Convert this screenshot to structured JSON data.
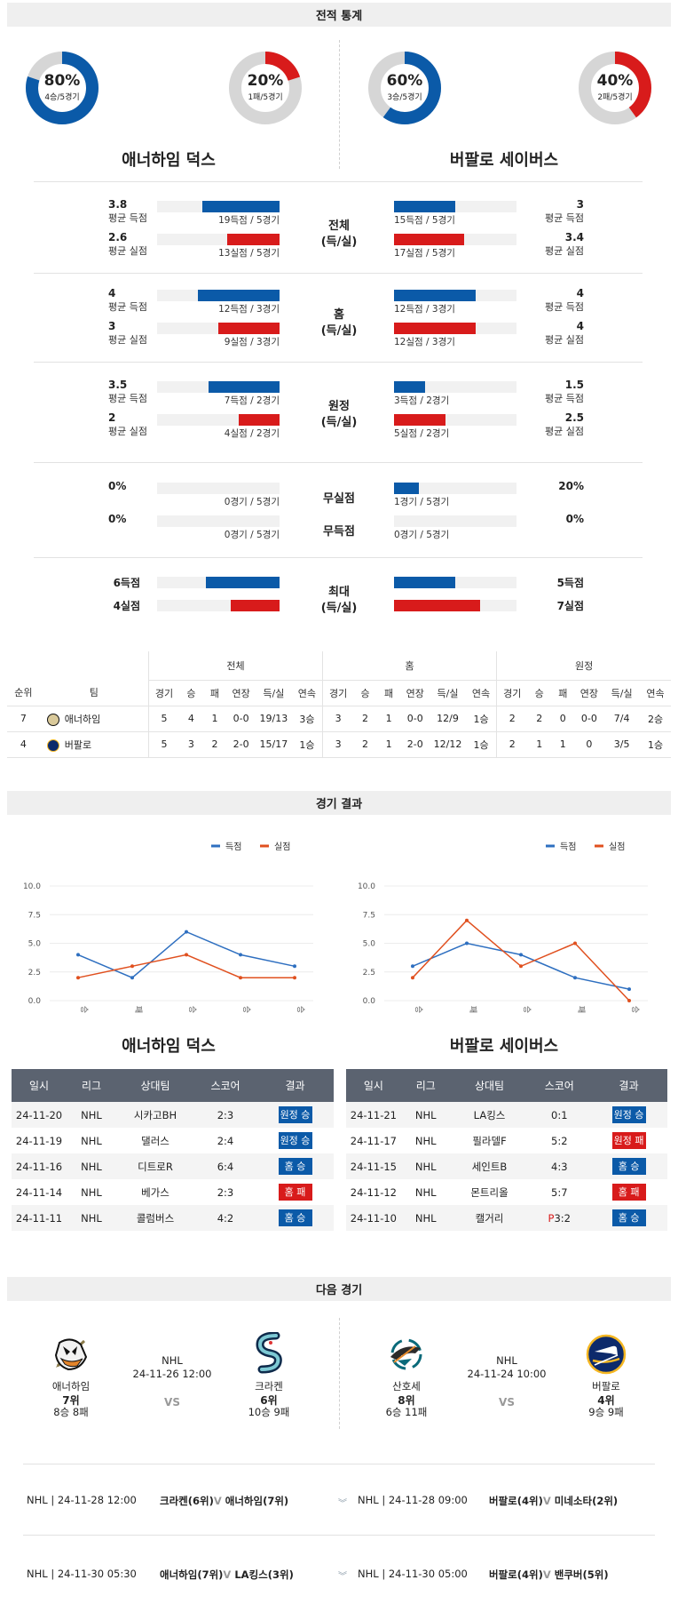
{
  "sections": {
    "stats": "전적 통계",
    "results": "경기 결과",
    "next": "다음 경기"
  },
  "teams": {
    "home": "애너하임 덕스",
    "away": "버팔로 세이버스"
  },
  "donuts": [
    {
      "pct": "80%",
      "sub": "4승/5경기",
      "value": 0.8,
      "color": "#0b5aa8"
    },
    {
      "pct": "20%",
      "sub": "1패/5경기",
      "value": 0.2,
      "color": "#d81b1b"
    },
    {
      "pct": "60%",
      "sub": "3승/5경기",
      "value": 0.6,
      "color": "#0b5aa8"
    },
    {
      "pct": "40%",
      "sub": "2패/5경기",
      "value": 0.4,
      "color": "#d81b1b"
    }
  ],
  "stat_groups": [
    {
      "mid": [
        "전체",
        "(득/실)"
      ],
      "left": [
        {
          "v": "3.8",
          "l": "평균 득점",
          "cap": "19득점 / 5경기",
          "f": 0.63
        },
        {
          "v": "2.6",
          "l": "평균 실점",
          "cap": "13실점 / 5경기",
          "f": 0.43
        }
      ],
      "right": [
        {
          "v": "3",
          "l": "평균 득점",
          "cap": "15득점 / 5경기",
          "f": 0.5
        },
        {
          "v": "3.4",
          "l": "평균 실점",
          "cap": "17실점 / 5경기",
          "f": 0.57
        }
      ]
    },
    {
      "mid": [
        "홈",
        "(득/실)"
      ],
      "left": [
        {
          "v": "4",
          "l": "평균 득점",
          "cap": "12득점 / 3경기",
          "f": 0.67
        },
        {
          "v": "3",
          "l": "평균 실점",
          "cap": "9실점 / 3경기",
          "f": 0.5
        }
      ],
      "right": [
        {
          "v": "4",
          "l": "평균 득점",
          "cap": "12득점 / 3경기",
          "f": 0.67
        },
        {
          "v": "4",
          "l": "평균 실점",
          "cap": "12실점 / 3경기",
          "f": 0.67
        }
      ]
    },
    {
      "mid": [
        "원정",
        "(득/실)"
      ],
      "left": [
        {
          "v": "3.5",
          "l": "평균 득점",
          "cap": "7득점 / 2경기",
          "f": 0.58
        },
        {
          "v": "2",
          "l": "평균 실점",
          "cap": "4실점 / 2경기",
          "f": 0.33
        }
      ],
      "right": [
        {
          "v": "1.5",
          "l": "평균 득점",
          "cap": "3득점 / 2경기",
          "f": 0.25
        },
        {
          "v": "2.5",
          "l": "평균 실점",
          "cap": "5실점 / 2경기",
          "f": 0.42
        }
      ]
    }
  ],
  "zero_stats": [
    {
      "mid": "무실점",
      "left": {
        "v": "0%",
        "cap": "0경기 / 5경기",
        "f": 0
      },
      "right": {
        "v": "20%",
        "cap": "1경기 / 5경기",
        "f": 0.2
      }
    },
    {
      "mid": "무득점",
      "left": {
        "v": "0%",
        "cap": "0경기 / 5경기",
        "f": 0
      },
      "right": {
        "v": "0%",
        "cap": "0경기 / 5경기",
        "f": 0
      }
    }
  ],
  "max_stats": {
    "mid": [
      "최대",
      "(득/실)"
    ],
    "left": [
      {
        "v": "6득점",
        "f": 0.6
      },
      {
        "v": "4실점",
        "f": 0.4
      }
    ],
    "right": [
      {
        "v": "5득점",
        "f": 0.5
      },
      {
        "v": "7실점",
        "f": 0.7
      }
    ]
  },
  "standings": {
    "groups": [
      "전체",
      "홈",
      "원정"
    ],
    "cols": [
      "순위",
      "팀",
      "경기",
      "승",
      "패",
      "연장",
      "득/실",
      "연속",
      "경기",
      "승",
      "패",
      "연장",
      "득/실",
      "연속",
      "경기",
      "승",
      "패",
      "연장",
      "득/실",
      "연속"
    ],
    "rows": [
      {
        "rank": "7",
        "team": "애너하임",
        "logo": "ducks-logo",
        "cells": [
          "5",
          "4",
          "1",
          "0-0",
          "19/13",
          "3승",
          "3",
          "2",
          "1",
          "0-0",
          "12/9",
          "1승",
          "2",
          "2",
          "0",
          "0-0",
          "7/4",
          "2승"
        ]
      },
      {
        "rank": "4",
        "team": "버팔로",
        "logo": "sabres-logo",
        "cells": [
          "5",
          "3",
          "2",
          "2-0",
          "15/17",
          "1승",
          "3",
          "2",
          "1",
          "2-0",
          "12/12",
          "1승",
          "2",
          "1",
          "1",
          "0",
          "3/5",
          "1승"
        ]
      }
    ]
  },
  "legend": {
    "scored": "득점",
    "conceded": "실점"
  },
  "chart_data": [
    {
      "type": "line",
      "x": [
        "승",
        "패",
        "승",
        "승",
        "승"
      ],
      "yticks": [
        "10.0",
        "7.5",
        "5.0",
        "2.5",
        "0.0"
      ],
      "ylim": [
        0,
        10
      ],
      "legend_position": "top-right",
      "series": [
        {
          "name": "득점",
          "values": [
            4,
            2,
            6,
            4,
            3
          ],
          "color": "#2e6fc0"
        },
        {
          "name": "실점",
          "values": [
            2,
            3,
            4,
            2,
            2
          ],
          "color": "#e0501f"
        }
      ]
    },
    {
      "type": "line",
      "x": [
        "승",
        "패",
        "승",
        "패",
        "승"
      ],
      "yticks": [
        "10.0",
        "7.5",
        "5.0",
        "2.5",
        "0.0"
      ],
      "ylim": [
        0,
        10
      ],
      "legend_position": "top-right",
      "series": [
        {
          "name": "득점",
          "values": [
            3,
            5,
            4,
            2,
            1
          ],
          "color": "#2e6fc0"
        },
        {
          "name": "실점",
          "values": [
            2,
            7,
            3,
            5,
            0
          ],
          "color": "#e0501f"
        }
      ]
    }
  ],
  "results": {
    "headers": [
      "일시",
      "리그",
      "상대팀",
      "스코어",
      "결과"
    ],
    "left": [
      {
        "date": "24-11-20",
        "league": "NHL",
        "opp": "시카고BH",
        "score": "2:3",
        "result": "원정 승",
        "color": "blue"
      },
      {
        "date": "24-11-19",
        "league": "NHL",
        "opp": "댈러스",
        "score": "2:4",
        "result": "원정 승",
        "color": "blue"
      },
      {
        "date": "24-11-16",
        "league": "NHL",
        "opp": "디트로R",
        "score": "6:4",
        "result": "홈 승",
        "color": "blue"
      },
      {
        "date": "24-11-14",
        "league": "NHL",
        "opp": "베가스",
        "score": "2:3",
        "result": "홈 패",
        "color": "red"
      },
      {
        "date": "24-11-11",
        "league": "NHL",
        "opp": "콜럼버스",
        "score": "4:2",
        "result": "홈 승",
        "color": "blue"
      }
    ],
    "right": [
      {
        "date": "24-11-21",
        "league": "NHL",
        "opp": "LA킹스",
        "score": "0:1",
        "result": "원정 승",
        "color": "blue"
      },
      {
        "date": "24-11-17",
        "league": "NHL",
        "opp": "필라델F",
        "score": "5:2",
        "result": "원정 패",
        "color": "red"
      },
      {
        "date": "24-11-15",
        "league": "NHL",
        "opp": "세인트B",
        "score": "4:3",
        "result": "홈 승",
        "color": "blue"
      },
      {
        "date": "24-11-12",
        "league": "NHL",
        "opp": "몬트리올",
        "score": "5:7",
        "result": "홈 패",
        "color": "red"
      },
      {
        "date": "24-11-10",
        "league": "NHL",
        "opp": "캘거리",
        "score_prefix": "P",
        "score": "3:2",
        "result": "홈 승",
        "color": "blue"
      }
    ]
  },
  "next": {
    "left": {
      "league": "NHL",
      "datetime": "24-11-26 12:00",
      "vs": "VS",
      "home": {
        "name": "애너하임",
        "rank": "7위",
        "record": "8승 8패",
        "logo": "ducks-logo"
      },
      "away": {
        "name": "크라켄",
        "rank": "6위",
        "record": "10승 9패",
        "logo": "kraken-logo"
      }
    },
    "right": {
      "league": "NHL",
      "datetime": "24-11-24 10:00",
      "vs": "VS",
      "home": {
        "name": "산호세",
        "rank": "8위",
        "record": "6승 11패",
        "logo": "sharks-logo"
      },
      "away": {
        "name": "버팔로",
        "rank": "4위",
        "record": "9승 9패",
        "logo": "sabres-logo"
      }
    }
  },
  "upcoming": [
    {
      "left": {
        "info": "NHL | 24-11-28 12:00",
        "t1": "크라켄(6위)",
        "sep": "V",
        "t2": "애너하임(7위)"
      },
      "right": {
        "info": "NHL | 24-11-28 09:00",
        "t1": "버팔로(4위)",
        "sep": "V",
        "t2": "미네소타(2위)"
      }
    },
    {
      "left": {
        "info": "NHL | 24-11-30 05:30",
        "t1": "애너하임(7위)",
        "sep": "V",
        "t2": "LA킹스(3위)"
      },
      "right": {
        "info": "NHL | 24-11-30 05:00",
        "t1": "버팔로(4위)",
        "sep": "V",
        "t2": "밴쿠버(5위)"
      }
    }
  ]
}
